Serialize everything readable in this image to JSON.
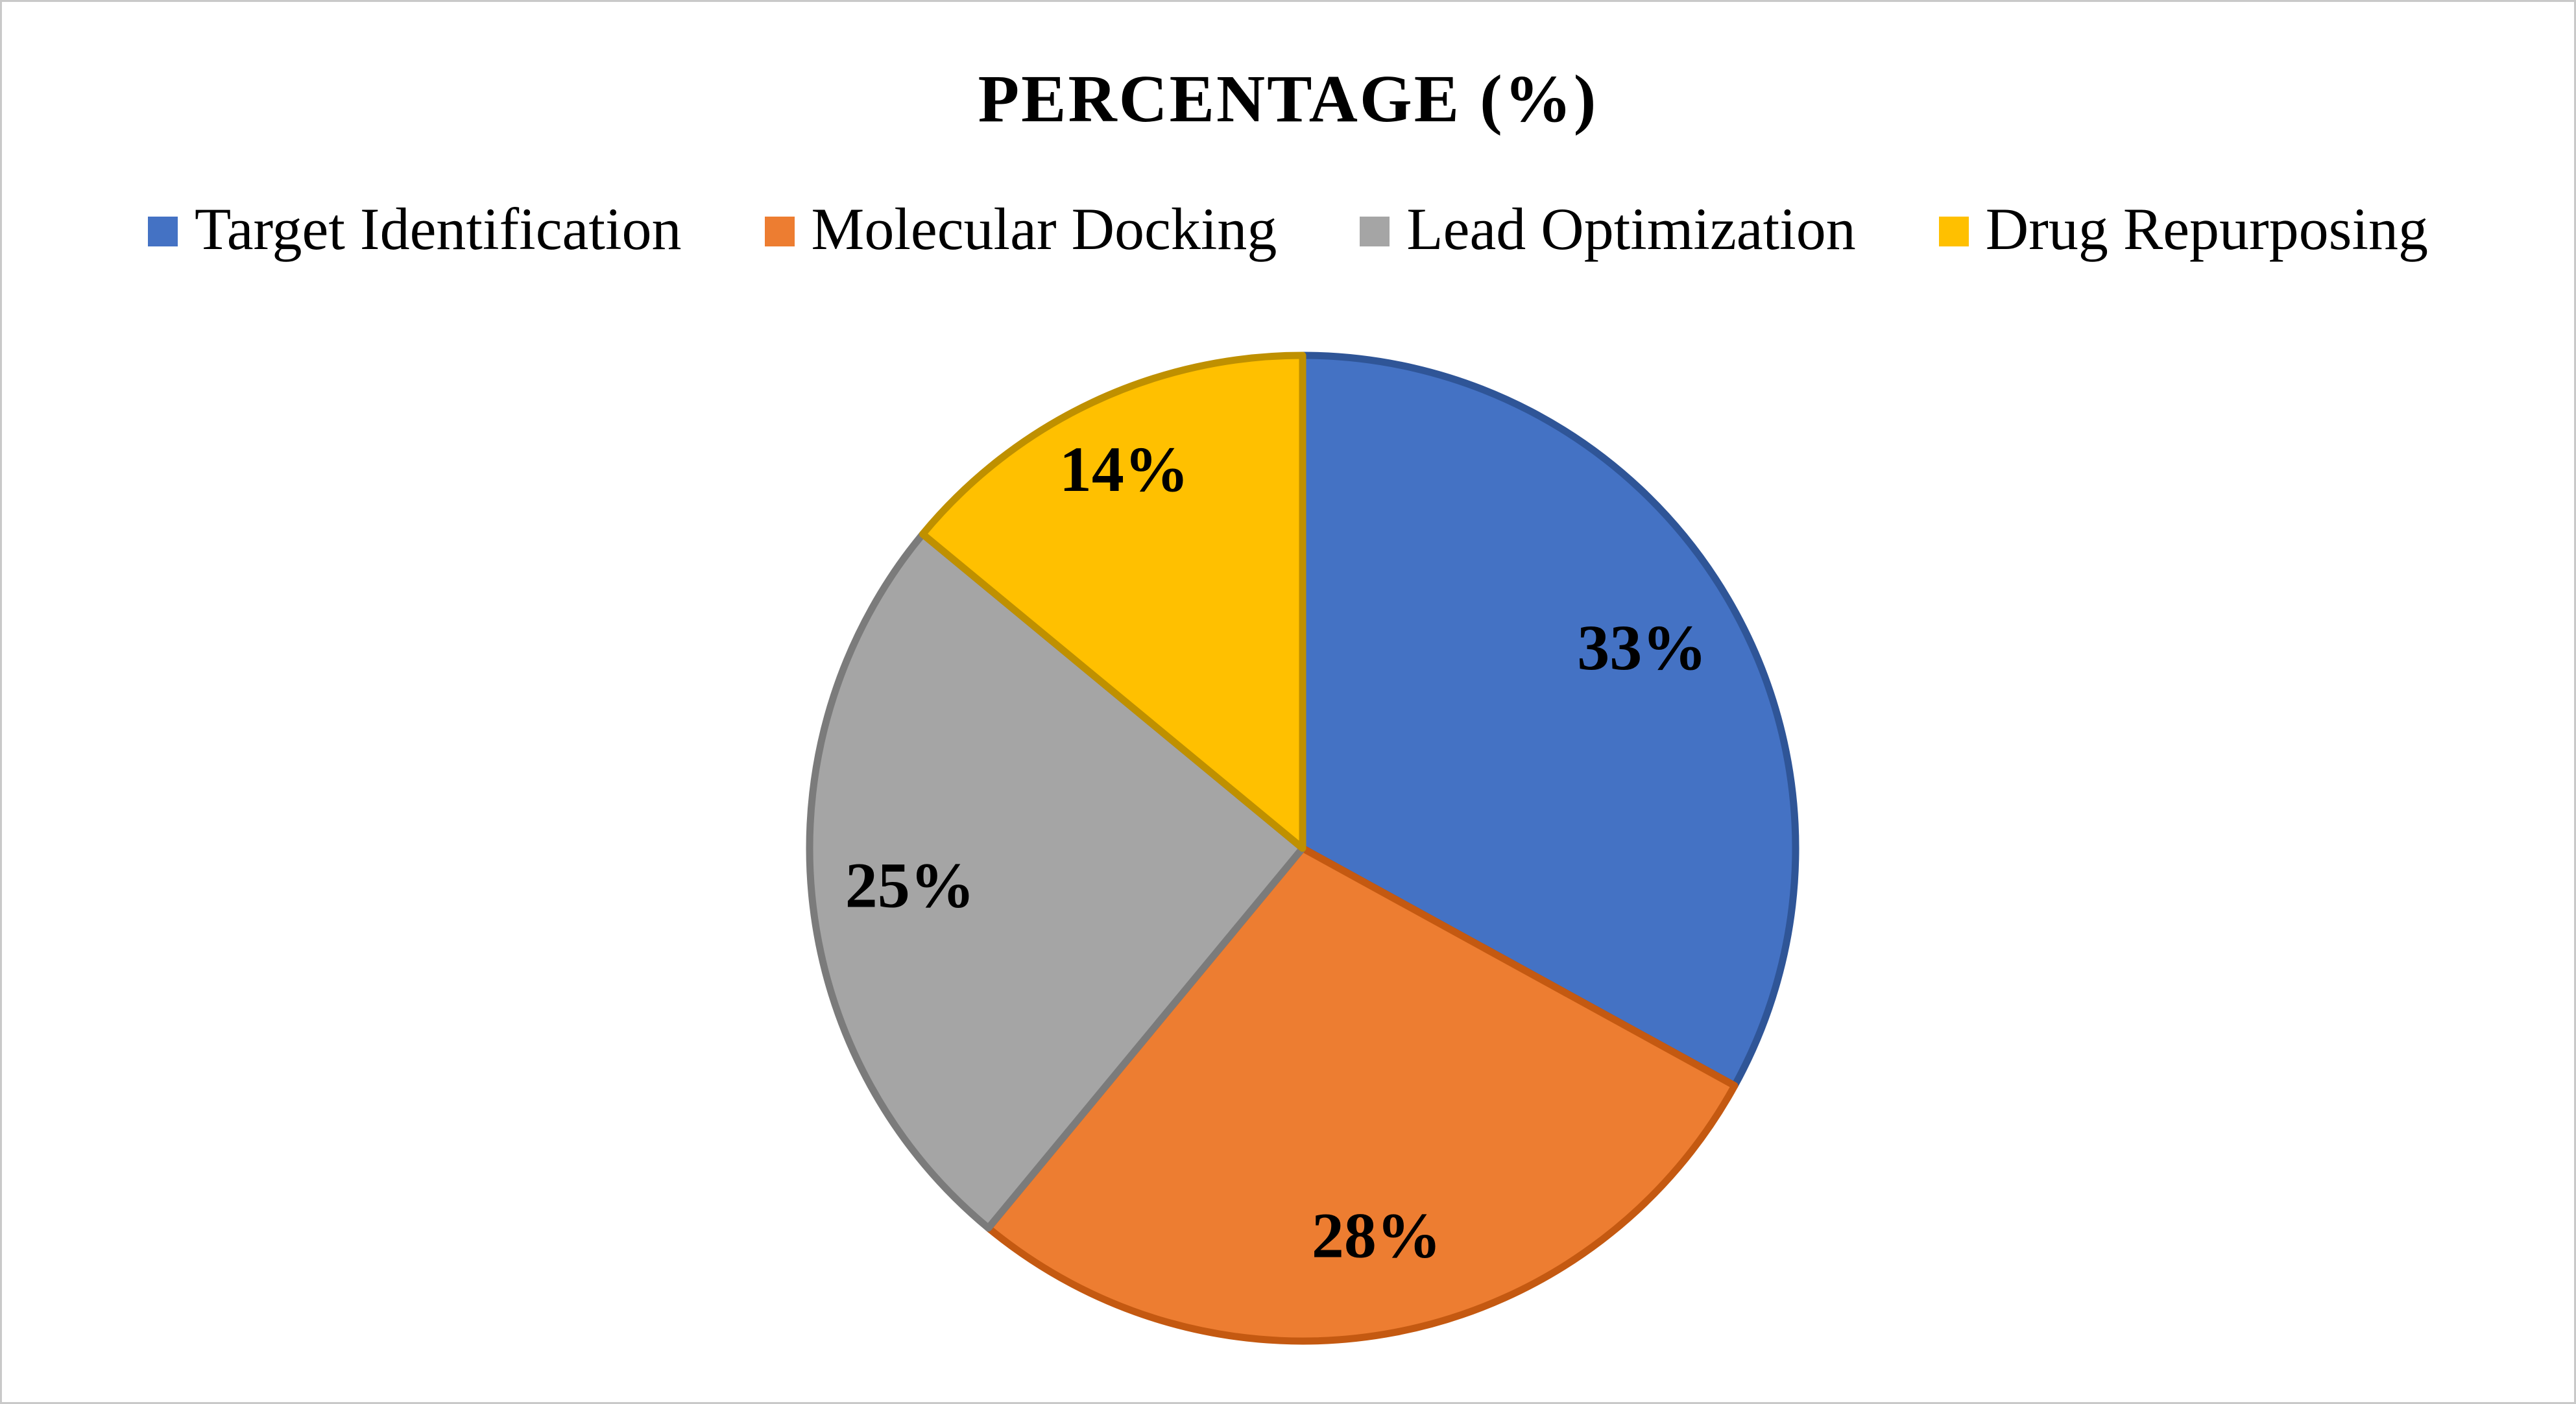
{
  "figure": {
    "background": "#ffffff",
    "border_color": "#c9c9c9"
  },
  "chart_data": {
    "type": "pie",
    "title": "PERCENTAGE (%)",
    "unit": "%",
    "legend_position": "top",
    "start_angle_deg": 0,
    "direction": "clockwise",
    "label_format": "percent",
    "slices": [
      {
        "label": "Target Identification",
        "value": 33,
        "data_label": "33%",
        "color": "#4472C4",
        "border_color": "#2F5597"
      },
      {
        "label": "Molecular Docking",
        "value": 28,
        "data_label": "28%",
        "color": "#ED7D31",
        "border_color": "#C45911"
      },
      {
        "label": "Lead Optimization",
        "value": 25,
        "data_label": "25%",
        "color": "#A5A5A5",
        "border_color": "#7B7B7B"
      },
      {
        "label": "Drug Repurposing",
        "value": 14,
        "data_label": "14%",
        "color": "#FFC000",
        "border_color": "#BF9000"
      }
    ]
  }
}
